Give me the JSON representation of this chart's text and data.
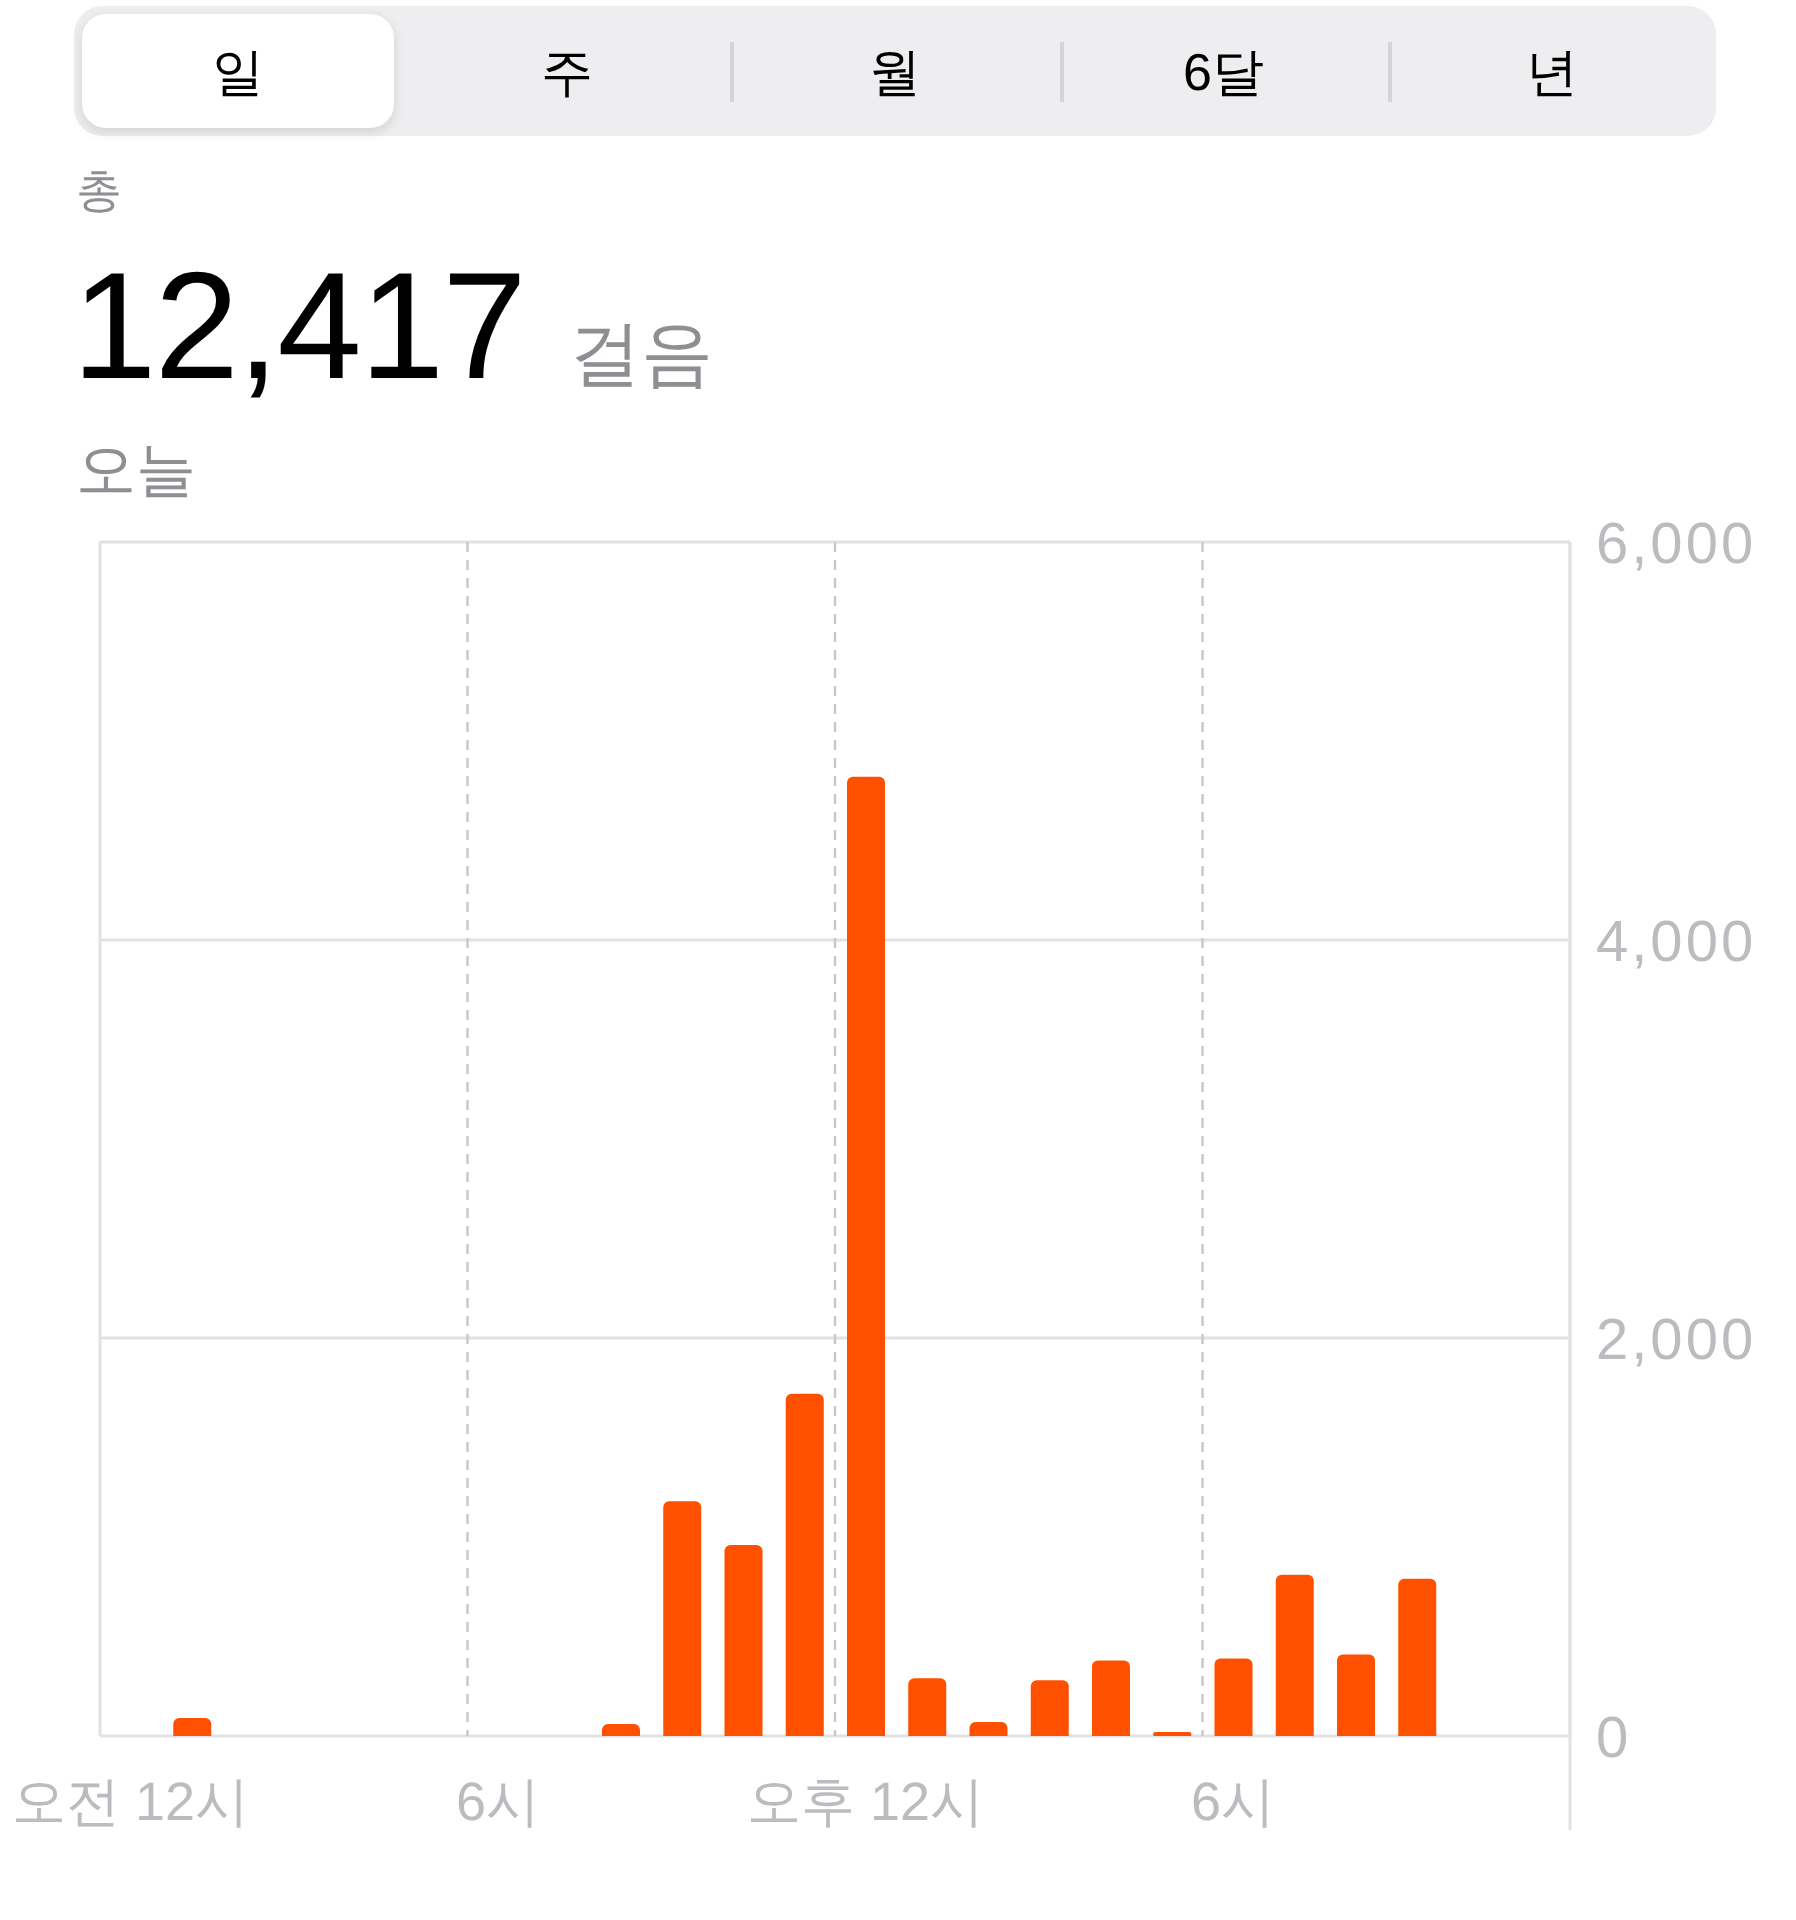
{
  "chart_data": [
    {
      "type": "other",
      "annotations": [
        "일",
        "주",
        "월",
        "6달",
        "년"
      ]
    },
    {
      "type": "bar",
      "title": "12,417 걸음",
      "subtitle": "오늘",
      "annotations": [
        "총"
      ],
      "categories": [
        "오전 12시",
        null,
        null,
        null,
        null,
        null,
        "6시",
        null,
        null,
        null,
        null,
        null,
        "오후 12시",
        null,
        null,
        null,
        null,
        null,
        "6시",
        null,
        null,
        null,
        null,
        null
      ],
      "values": [
        null,
        90,
        null,
        null,
        null,
        null,
        null,
        null,
        60,
        1180,
        960,
        1720,
        4820,
        290,
        70,
        280,
        380,
        20,
        390,
        810,
        410,
        790,
        null,
        null
      ],
      "color": "#ff5000",
      "ylim": [
        0,
        6000
      ],
      "yticks": [
        0,
        {
          "value": 2000,
          "label": "2,000"
        },
        {
          "value": 4000,
          "label": "4,000"
        },
        {
          "value": 6000,
          "label": "6,000"
        }
      ],
      "grid": true
    }
  ]
}
